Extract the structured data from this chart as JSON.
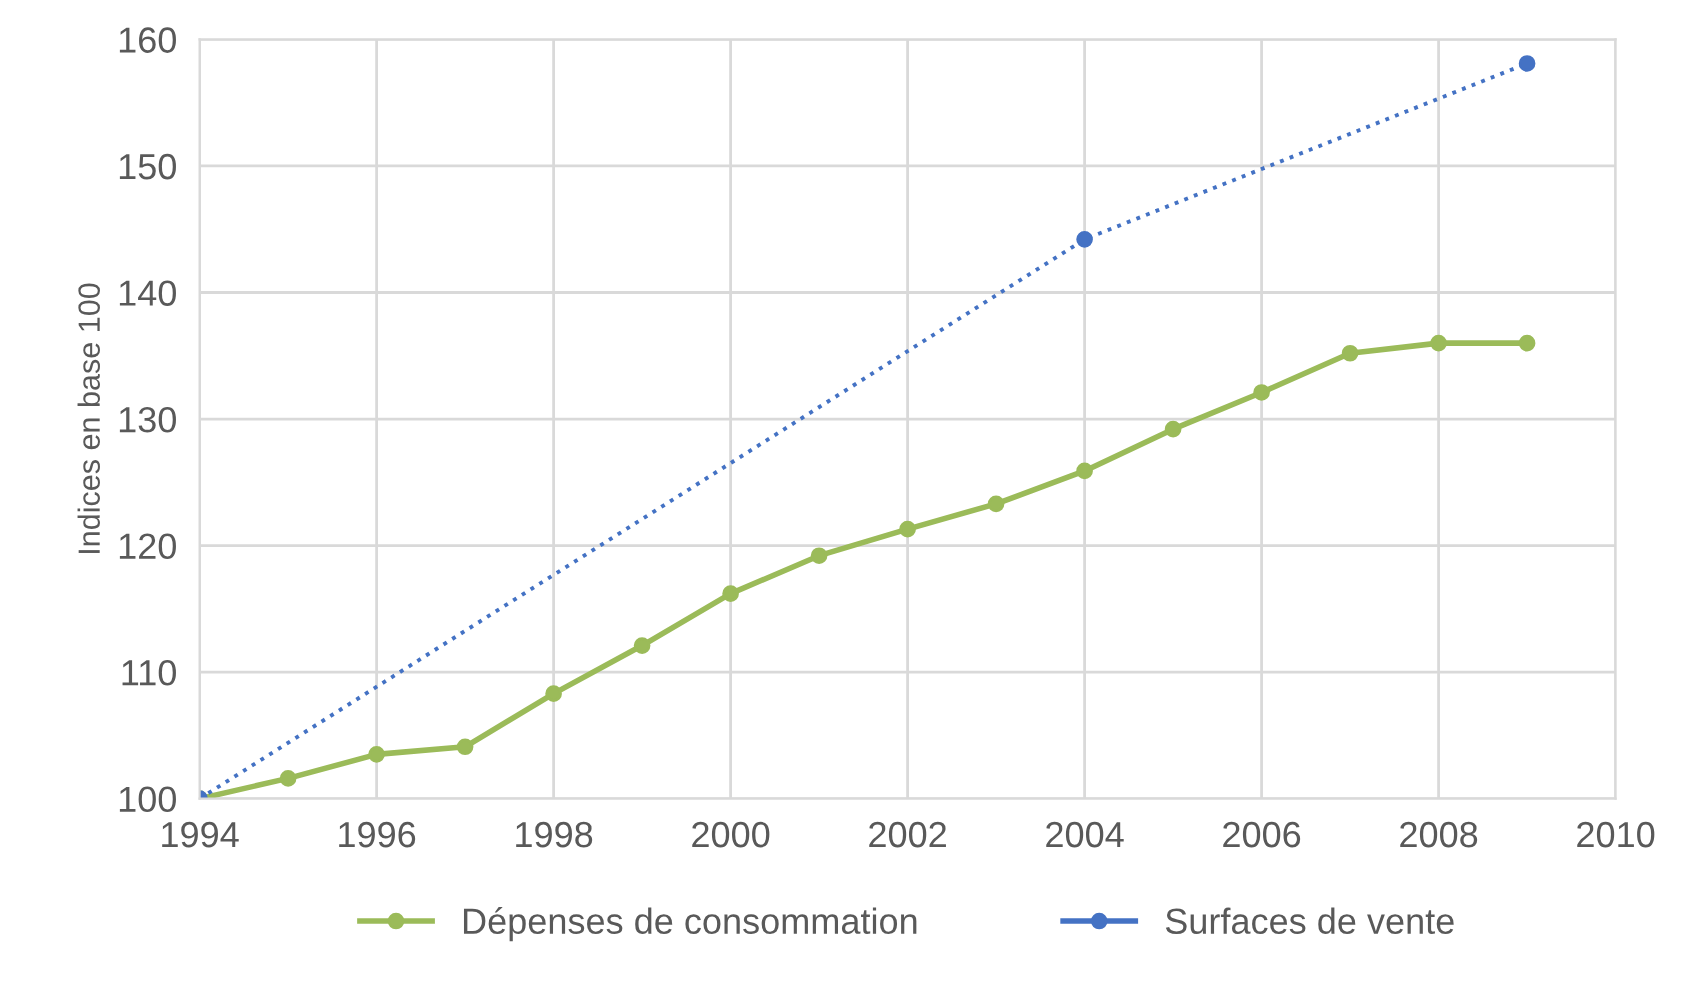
{
  "chart_data": {
    "type": "line",
    "ylabel": "Indices en base 100",
    "series": [
      {
        "name": "Dépenses de consommation",
        "color": "#9bbb59",
        "line_style": "solid",
        "x": [
          1994,
          1995,
          1996,
          1997,
          1998,
          1999,
          2000,
          2001,
          2002,
          2003,
          2004,
          2005,
          2006,
          2007,
          2008,
          2009
        ],
        "values": [
          100,
          101.6,
          103.5,
          104.1,
          108.3,
          112.1,
          116.2,
          119.2,
          121.3,
          123.3,
          125.9,
          129.2,
          132.1,
          135.2,
          136.0,
          136.0
        ]
      },
      {
        "name": "Surfaces de vente",
        "color": "#4472c4",
        "line_style": "dotted",
        "x": [
          1994,
          2004,
          2009
        ],
        "values": [
          100,
          144.2,
          158.1
        ]
      }
    ],
    "xlim": [
      1994,
      2010
    ],
    "xticks": [
      1994,
      1996,
      1998,
      2000,
      2002,
      2004,
      2006,
      2008,
      2010
    ],
    "ylim": [
      100,
      160
    ],
    "yticks": [
      100,
      110,
      120,
      130,
      140,
      150,
      160
    ],
    "grid": true,
    "legend": "bottom",
    "marker": "circle"
  }
}
